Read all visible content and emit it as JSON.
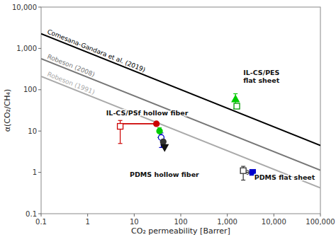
{
  "chart_data": {
    "type": "scatter",
    "log": true,
    "xlabel": "CO₂ permeability [Barrer]",
    "ylabel": "α(CO₂/CH₄)",
    "xlim": [
      0.1,
      100000
    ],
    "ylim": [
      0.1,
      10000
    ],
    "xticks": [
      0.1,
      1,
      10,
      100,
      {
        "value": 1000,
        "label": "1,000"
      },
      {
        "value": 10000,
        "label": "10,000"
      },
      {
        "value": 100000,
        "label": "100,000"
      }
    ],
    "yticks": [
      0.1,
      1,
      10,
      100,
      {
        "value": 1000,
        "label": "1,000"
      },
      {
        "value": 10000,
        "label": "10,000"
      }
    ],
    "series": [
      {
        "name": "Comesana-Gandara et al. (2019)",
        "type": "line",
        "color": "#000000",
        "x": [
          0.1,
          100000
        ],
        "values": [
          2254.7063450116,
          4.4987306015
        ]
      },
      {
        "name": "Robeson (2008)",
        "type": "line",
        "color": "#777777",
        "x": [
          0.1,
          100000
        ],
        "values": [
          563.6765862529,
          1.1246826504
        ]
      },
      {
        "name": "Robeson (1991)",
        "type": "line",
        "color": "#aaaaaa",
        "x": [
          0.1,
          100000
        ],
        "values": [
          211.3787198448,
          0.4217559939
        ]
      },
      {
        "type": "scatter",
        "marker": "triangle-up",
        "color": "#00cc00",
        "x": [
          1500
        ],
        "values": [
          60
        ],
        "error_low": [
          25
        ],
        "error_high": [
          20
        ]
      },
      {
        "type": "scatter",
        "marker": "square-open",
        "color": "#009900",
        "x": [
          1600
        ],
        "values": [
          40
        ]
      },
      {
        "type": "scatter",
        "marker": "square-open",
        "color": "#cc0000",
        "x": [
          5
        ],
        "values": [
          13
        ],
        "error_low": [
          8
        ],
        "error_high": [
          5
        ]
      },
      {
        "type": "scatter",
        "marker": "circle",
        "color": "#cc0000",
        "x": [
          30
        ],
        "values": [
          15
        ]
      },
      {
        "type": "scatter",
        "marker": "circle",
        "color": "#00cc00",
        "x": [
          35
        ],
        "values": [
          10
        ],
        "error_low": [
          3
        ],
        "error_high": [
          2
        ]
      },
      {
        "type": "scatter",
        "marker": "circle-open",
        "color": "#0000cc",
        "x": [
          38
        ],
        "values": [
          7
        ],
        "error_low": [
          3
        ],
        "error_high": [
          2
        ]
      },
      {
        "type": "scatter",
        "marker": "circle",
        "color": "#333333",
        "x": [
          42
        ],
        "values": [
          5.5
        ]
      },
      {
        "type": "scatter",
        "marker": "triangle-down",
        "color": "#111111",
        "x": [
          45
        ],
        "values": [
          4
        ]
      },
      {
        "type": "scatter",
        "marker": "square-open",
        "color": "#333333",
        "x": [
          2200
        ],
        "values": [
          1.1
        ],
        "error_low": [
          0.45
        ],
        "error_high": [
          0.3
        ]
      },
      {
        "type": "scatter",
        "marker": "square",
        "color": "#0000cc",
        "x": [
          3500
        ],
        "values": [
          1.0
        ]
      },
      {
        "type": "line",
        "color": "#cc0000",
        "x": [
          5,
          30
        ],
        "values": [
          15,
          15
        ]
      },
      {
        "type": "arrow",
        "color": "#333333",
        "x": [
          2500,
          3200
        ],
        "values": [
          1.0,
          1.0
        ]
      }
    ],
    "annotations": [
      {
        "text": "IL-CS/PES\nflat sheet",
        "x": 2200,
        "y": 130
      },
      {
        "text": "IL-CS/PSf hollow fiber",
        "x": 2.5,
        "y": 21
      },
      {
        "text": "PDMS hollow fiber",
        "x": 8,
        "y": 0.7
      },
      {
        "text": "PDMS flat sheet",
        "x": 3800,
        "y": 0.58
      }
    ]
  }
}
